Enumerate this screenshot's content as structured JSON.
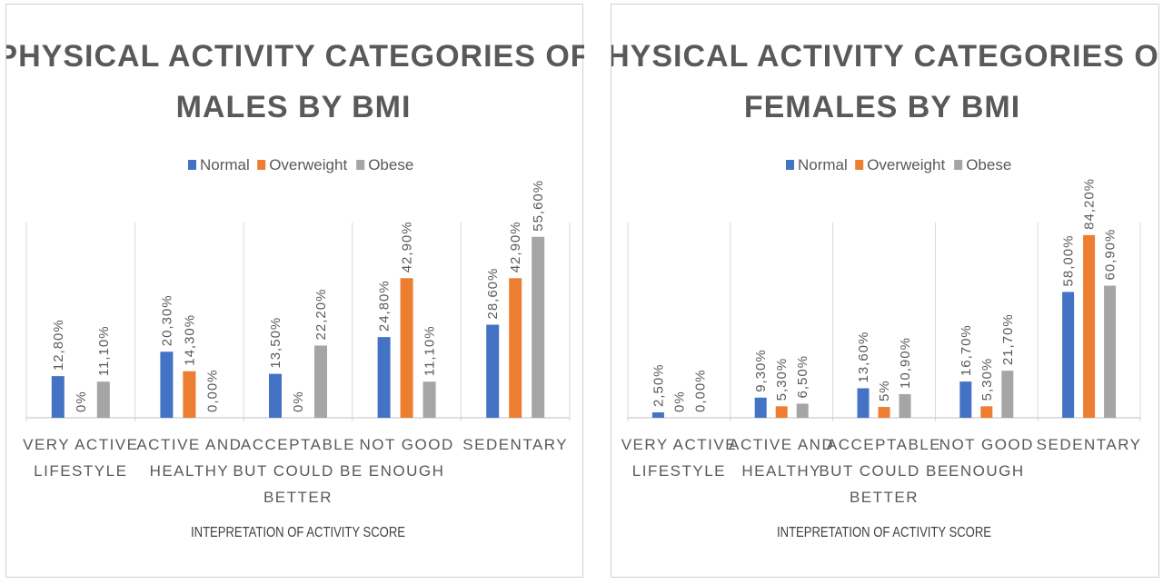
{
  "chart_data": [
    {
      "type": "bar",
      "title_lines": [
        "PHYSICAL ACTIVITY CATEGORIES OF",
        "MALES BY BMI"
      ],
      "xlabel": "INTEPRETATION OF ACTIVITY SCORE",
      "ylabel": "",
      "ylim": [
        0,
        60
      ],
      "legend_position": "top",
      "categories": [
        [
          "VERY ACTIVE",
          "LIFESTYLE"
        ],
        [
          "ACTIVE AND",
          "HEALTHY"
        ],
        [
          "ACCEPTABLE",
          "BUT COULD BE",
          "BETTER"
        ],
        [
          "NOT GOOD",
          "ENOUGH"
        ],
        [
          "SEDENTARY"
        ]
      ],
      "series": [
        {
          "name": "Normal",
          "color": "#4472C4",
          "values": [
            12.8,
            20.3,
            13.5,
            24.8,
            28.6
          ],
          "labels": [
            "12,80%",
            "20,30%",
            "13,50%",
            "24,80%",
            "28,60%"
          ]
        },
        {
          "name": "Overweight",
          "color": "#ED7D31",
          "values": [
            0,
            14.3,
            0,
            42.9,
            42.9
          ],
          "labels": [
            "0%",
            "14,30%",
            "0%",
            "42,90%",
            "42,90%"
          ]
        },
        {
          "name": "Obese",
          "color": "#A5A5A5",
          "values": [
            11.1,
            0,
            22.2,
            11.1,
            55.6
          ],
          "labels": [
            "11,10%",
            "0,00%",
            "22,20%",
            "11,10%",
            "55,60%"
          ]
        }
      ]
    },
    {
      "type": "bar",
      "title_lines": [
        "PHYSICAL ACTIVITY CATEGORIES OF",
        "FEMALES BY BMI"
      ],
      "xlabel": "INTEPRETATION OF ACTIVITY SCORE",
      "ylabel": "",
      "ylim": [
        0,
        90
      ],
      "legend_position": "top",
      "categories": [
        [
          "VERY ACTIVE",
          "LIFESTYLE"
        ],
        [
          "ACTIVE AND",
          "HEALTHY"
        ],
        [
          "ACCEPTABLE",
          "BUT COULD BE",
          "BETTER"
        ],
        [
          "NOT GOOD",
          "ENOUGH"
        ],
        [
          "SEDENTARY"
        ]
      ],
      "series": [
        {
          "name": "Normal",
          "color": "#4472C4",
          "values": [
            2.5,
            9.3,
            13.6,
            16.7,
            58.0
          ],
          "labels": [
            "2,50%",
            "9,30%",
            "13,60%",
            "16,70%",
            "58,00%"
          ]
        },
        {
          "name": "Overweight",
          "color": "#ED7D31",
          "values": [
            0,
            5.3,
            5,
            5.3,
            84.2
          ],
          "labels": [
            "0%",
            "5,30%",
            "5%",
            "5,30%",
            "84,20%"
          ]
        },
        {
          "name": "Obese",
          "color": "#A5A5A5",
          "values": [
            0,
            6.5,
            10.9,
            21.7,
            60.9
          ],
          "labels": [
            "0,00%",
            "6,50%",
            "10,90%",
            "21,70%",
            "60,90%"
          ]
        }
      ]
    }
  ]
}
